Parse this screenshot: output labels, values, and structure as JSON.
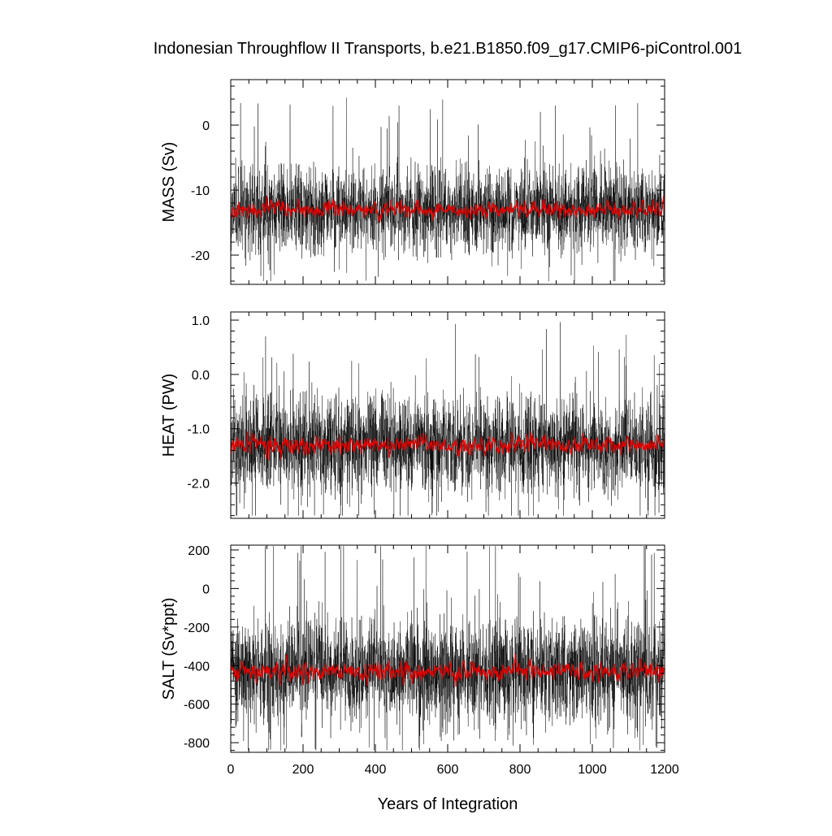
{
  "figure": {
    "title": "Indonesian Throughflow II Transports, b.e21.B1850.f09_g17.CMIP6-piControl.001",
    "xlabel": "Years of Integration"
  },
  "colors": {
    "raw_series": "#000000",
    "smoothed_series": "#e00000",
    "frame": "#000000"
  },
  "chart_data": [
    {
      "type": "line",
      "panel": "mass",
      "ylabel": "MASS (Sv)",
      "xlim": [
        0,
        1200
      ],
      "ylim": [
        -24.5,
        7
      ],
      "xticks": [
        0,
        200,
        400,
        600,
        800,
        1000,
        1200
      ],
      "xtick_labels": [],
      "yticks": [
        0,
        -10,
        -20
      ],
      "ytick_labels": [
        "0",
        "-10",
        "-20"
      ],
      "series": [
        {
          "style": "raw",
          "color": "#000000",
          "x_range": [
            0,
            1200
          ],
          "mean": -13,
          "typical_range": [
            -20,
            -7
          ],
          "extremes": [
            -24,
            6
          ]
        },
        {
          "style": "smoothed",
          "color": "#e00000",
          "x_range": [
            0,
            1200
          ],
          "mean": -13,
          "typical_range": [
            -14.5,
            -11.5
          ]
        }
      ]
    },
    {
      "type": "line",
      "panel": "heat",
      "ylabel": "HEAT (PW)",
      "xlim": [
        0,
        1200
      ],
      "ylim": [
        -2.65,
        1.15
      ],
      "xticks": [
        0,
        200,
        400,
        600,
        800,
        1000,
        1200
      ],
      "xtick_labels": [],
      "yticks": [
        1.0,
        0.0,
        -1.0,
        -2.0
      ],
      "ytick_labels": [
        "1.0",
        "0.0",
        "-1.0",
        "-2.0"
      ],
      "series": [
        {
          "style": "raw",
          "color": "#000000",
          "x_range": [
            0,
            1200
          ],
          "mean": -1.3,
          "typical_range": [
            -2.2,
            -0.4
          ],
          "extremes": [
            -2.6,
            1.1
          ]
        },
        {
          "style": "smoothed",
          "color": "#e00000",
          "x_range": [
            0,
            1200
          ],
          "mean": -1.3,
          "typical_range": [
            -1.5,
            -1.1
          ]
        }
      ]
    },
    {
      "type": "line",
      "panel": "salt",
      "ylabel": "SALT (Sv*ppt)",
      "xlim": [
        0,
        1200
      ],
      "ylim": [
        -850,
        225
      ],
      "xticks": [
        0,
        200,
        400,
        600,
        800,
        1000,
        1200
      ],
      "xtick_labels": [
        "0",
        "200",
        "400",
        "600",
        "800",
        "1000",
        "1200"
      ],
      "yticks": [
        200,
        0,
        -200,
        -400,
        -600,
        -800
      ],
      "ytick_labels": [
        "200",
        "0",
        "-200",
        "-400",
        "-600",
        "-800"
      ],
      "series": [
        {
          "style": "raw",
          "color": "#000000",
          "x_range": [
            0,
            1200
          ],
          "mean": -430,
          "typical_range": [
            -700,
            -150
          ],
          "extremes": [
            -840,
            220
          ]
        },
        {
          "style": "smoothed",
          "color": "#e00000",
          "x_range": [
            0,
            1200
          ],
          "mean": -430,
          "typical_range": [
            -490,
            -370
          ]
        }
      ]
    }
  ]
}
